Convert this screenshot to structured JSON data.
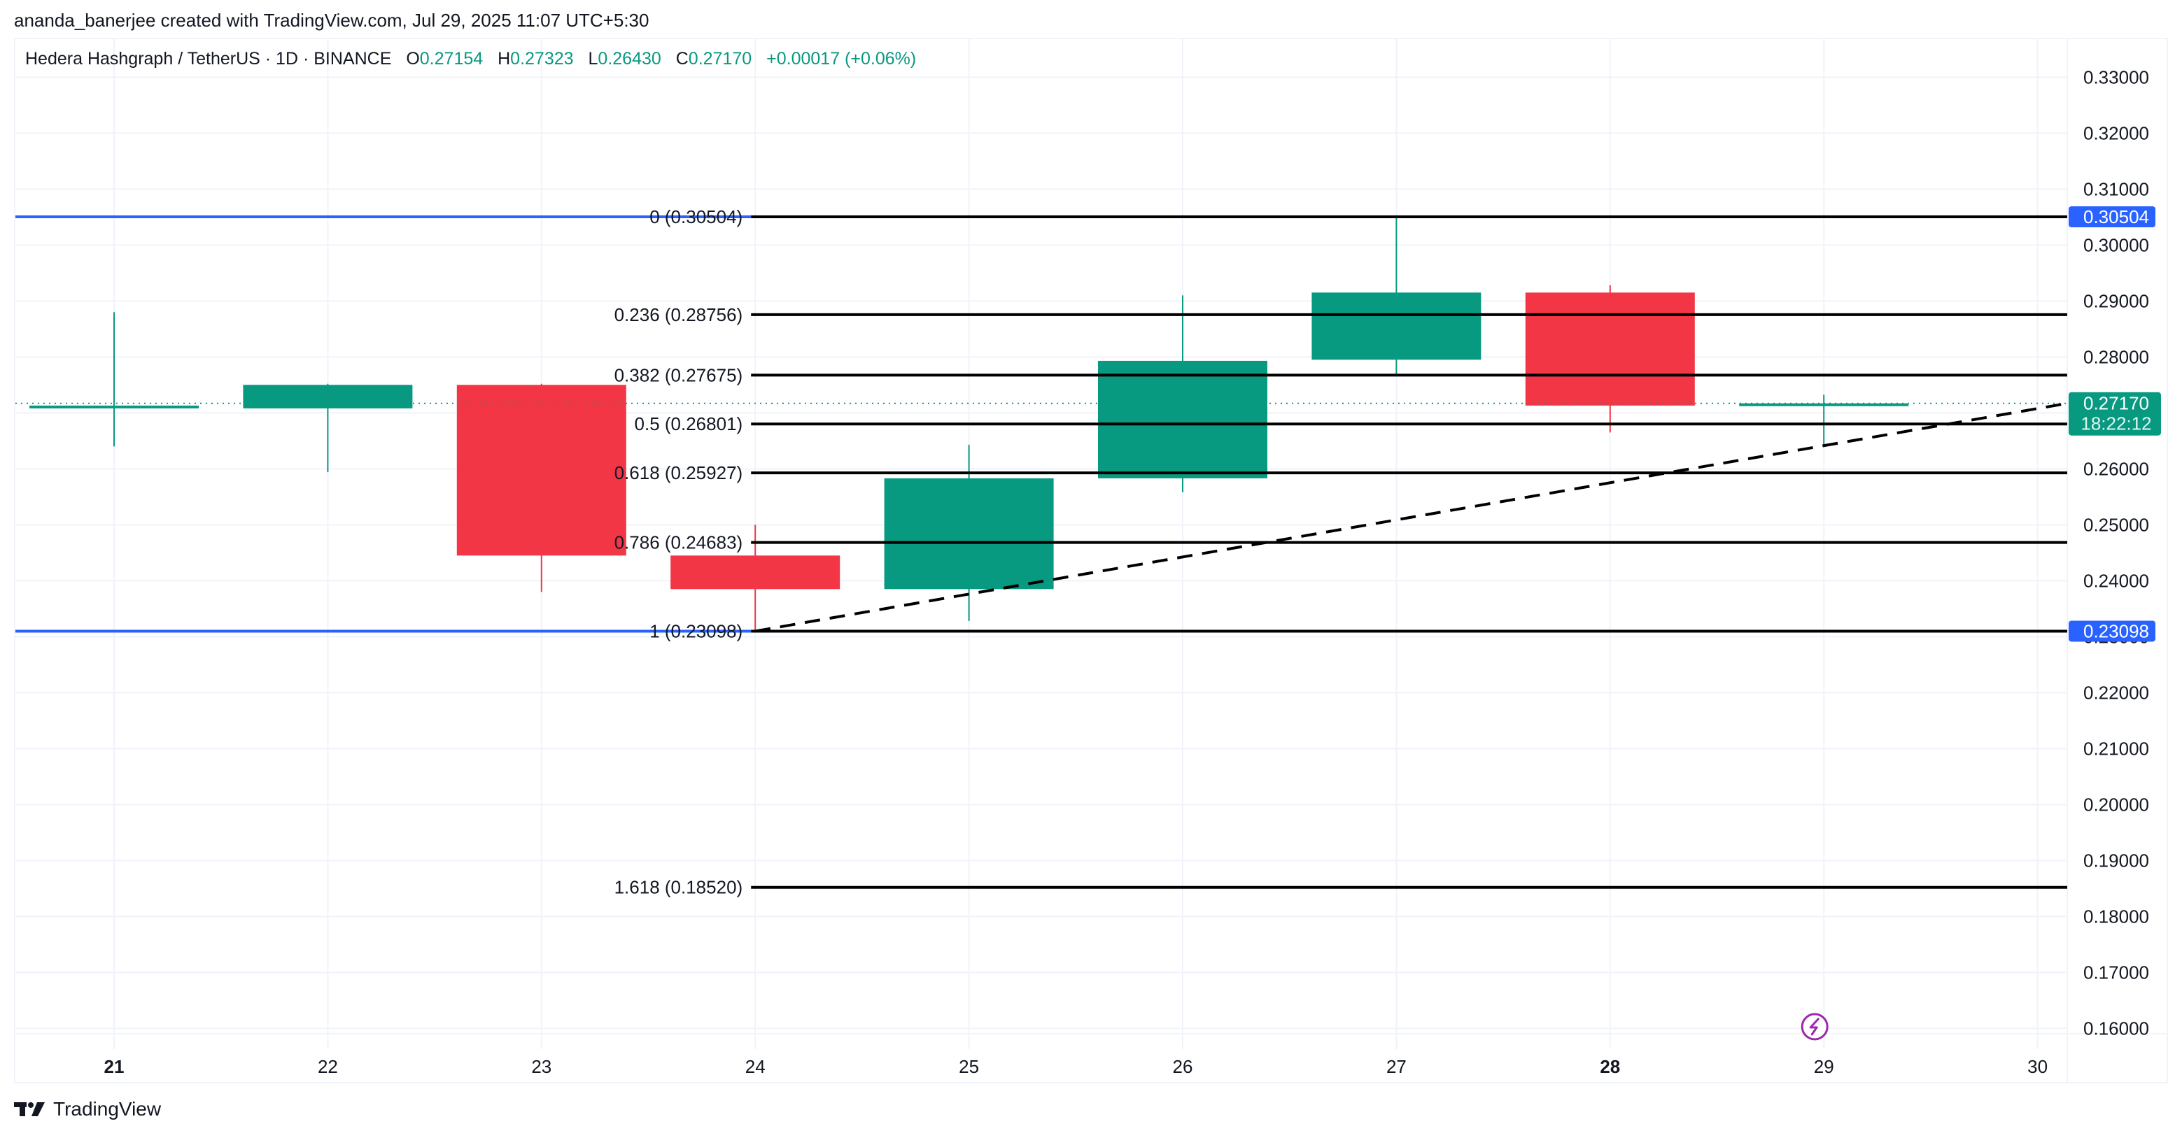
{
  "credit": "ananda_banerjee created with TradingView.com, Jul 29, 2025 11:07 UTC+5:30",
  "legend": {
    "symbol": "Hedera Hashgraph / TetherUS · 1D · BINANCE",
    "o_label": "O",
    "o_value": "0.27154",
    "h_label": "H",
    "h_value": "0.27323",
    "l_label": "L",
    "l_value": "0.26430",
    "c_label": "C",
    "c_value": "0.27170",
    "change": "+0.00017 (+0.06%)"
  },
  "footer": {
    "logo_mark": "TV",
    "logo_text": "TradingView"
  },
  "colors": {
    "up": "#089981",
    "down": "#f23645",
    "fib_line": "#000000",
    "fib_anchor": "#2962ff",
    "grid": "#f0f3fa",
    "axis_text": "#131722",
    "event": "#9c27b0"
  },
  "chart_data": {
    "type": "candlestick",
    "title": "Hedera Hashgraph / TetherUS · 1D · BINANCE",
    "xlabel": "",
    "ylabel": "",
    "x_ticks": [
      {
        "label": "21",
        "bold": true
      },
      {
        "label": "22",
        "bold": false
      },
      {
        "label": "23",
        "bold": false
      },
      {
        "label": "24",
        "bold": false
      },
      {
        "label": "25",
        "bold": false
      },
      {
        "label": "26",
        "bold": false
      },
      {
        "label": "27",
        "bold": false
      },
      {
        "label": "28",
        "bold": true
      },
      {
        "label": "29",
        "bold": false
      },
      {
        "label": "30",
        "bold": false
      }
    ],
    "y_ticks": [
      "0.33000",
      "0.32000",
      "0.31000",
      "0.30000",
      "0.29000",
      "0.28000",
      "0.27000",
      "0.26000",
      "0.25000",
      "0.24000",
      "0.23000",
      "0.22000",
      "0.21000",
      "0.20000",
      "0.19000",
      "0.18000",
      "0.17000",
      "0.16000"
    ],
    "ylim": [
      0.16,
      0.33
    ],
    "grid": true,
    "candles": [
      {
        "day": "21",
        "open": 0.2712,
        "high": 0.288,
        "low": 0.264,
        "close": 0.2713
      },
      {
        "day": "22",
        "open": 0.2708,
        "high": 0.2752,
        "low": 0.2594,
        "close": 0.275
      },
      {
        "day": "23",
        "open": 0.275,
        "high": 0.2752,
        "low": 0.238,
        "close": 0.2445
      },
      {
        "day": "24",
        "open": 0.2445,
        "high": 0.25,
        "low": 0.23098,
        "close": 0.2385
      },
      {
        "day": "25",
        "open": 0.2385,
        "high": 0.2643,
        "low": 0.2328,
        "close": 0.2583
      },
      {
        "day": "26",
        "open": 0.2583,
        "high": 0.291,
        "low": 0.2558,
        "close": 0.2793
      },
      {
        "day": "27",
        "open": 0.2795,
        "high": 0.30504,
        "low": 0.2768,
        "close": 0.2915
      },
      {
        "day": "28",
        "open": 0.2915,
        "high": 0.2928,
        "low": 0.2665,
        "close": 0.2713
      },
      {
        "day": "29",
        "open": 0.27154,
        "high": 0.27323,
        "low": 0.2643,
        "close": 0.2717
      }
    ],
    "fib_levels": [
      {
        "ratio": "0",
        "price": 0.30504,
        "label": "0 (0.30504)",
        "anchor": true
      },
      {
        "ratio": "0.236",
        "price": 0.28756,
        "label": "0.236 (0.28756)",
        "anchor": false
      },
      {
        "ratio": "0.382",
        "price": 0.27675,
        "label": "0.382 (0.27675)",
        "anchor": false
      },
      {
        "ratio": "0.5",
        "price": 0.26801,
        "label": "0.5 (0.26801)",
        "anchor": false
      },
      {
        "ratio": "0.618",
        "price": 0.25927,
        "label": "0.618 (0.25927)",
        "anchor": false
      },
      {
        "ratio": "0.786",
        "price": 0.24683,
        "label": "0.786 (0.24683)",
        "anchor": false
      },
      {
        "ratio": "1",
        "price": 0.23098,
        "label": "1 (0.23098)",
        "anchor": true
      },
      {
        "ratio": "1.618",
        "price": 0.1852,
        "label": "1.618 (0.18520)",
        "anchor": false
      }
    ],
    "trendline": {
      "style": "dashed",
      "from": {
        "day_index": 3,
        "price": 0.23098
      },
      "to": {
        "day_index": 9.3,
        "price": 0.2725
      }
    },
    "last_price": {
      "value": "0.27170",
      "countdown": "18:22:12",
      "price": 0.2717
    },
    "axis_badges": [
      {
        "value": "0.30504",
        "price": 0.30504
      },
      {
        "value": "0.23098",
        "price": 0.23098
      }
    ],
    "event_marker": {
      "day_index": 8,
      "icon": "lightning-icon"
    }
  }
}
